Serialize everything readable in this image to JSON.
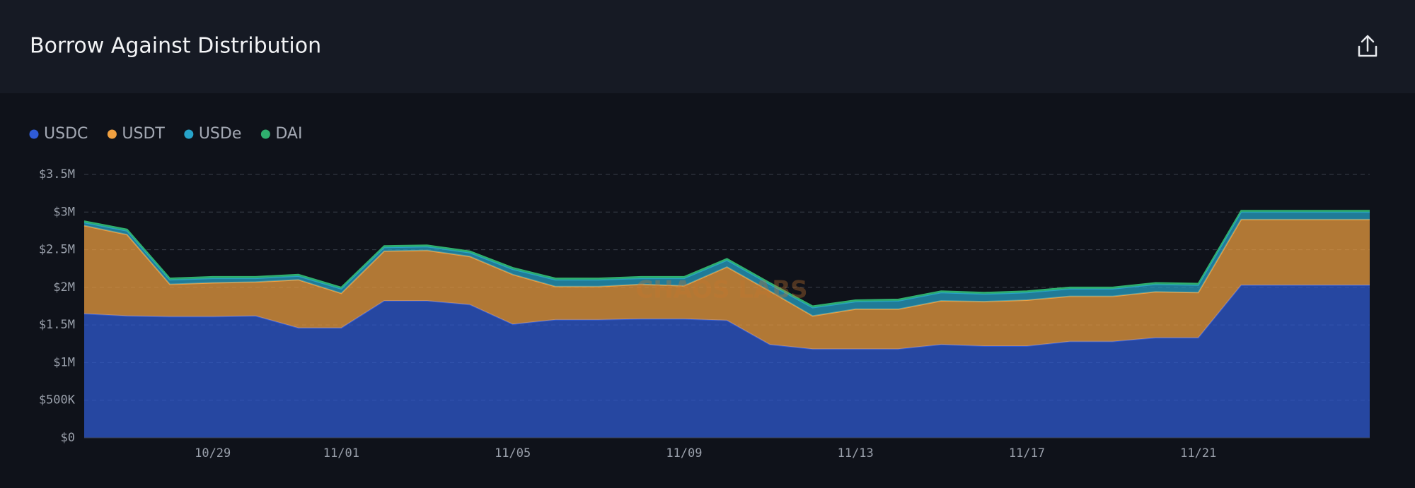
{
  "header": {
    "title": "Borrow Against Distribution"
  },
  "chart_data": {
    "type": "stacked-area",
    "watermark": "CHAOS LABS",
    "categories": [
      null,
      null,
      null,
      "10/29",
      null,
      null,
      "11/01",
      null,
      null,
      null,
      "11/05",
      null,
      null,
      null,
      "11/09",
      null,
      null,
      null,
      "11/13",
      null,
      null,
      null,
      "11/17",
      null,
      null,
      null,
      "11/21",
      null,
      null,
      null,
      null
    ],
    "series": [
      {
        "name": "USDC",
        "color": "#2f5bd6",
        "values": [
          1650000,
          1620000,
          1610000,
          1610000,
          1620000,
          1460000,
          1460000,
          1820000,
          1820000,
          1770000,
          1510000,
          1570000,
          1570000,
          1580000,
          1580000,
          1560000,
          1240000,
          1180000,
          1180000,
          1180000,
          1240000,
          1220000,
          1220000,
          1280000,
          1280000,
          1330000,
          1330000,
          2030000,
          2030000,
          2030000,
          2030000
        ]
      },
      {
        "name": "USDT",
        "color": "#f0a040",
        "values": [
          1170000,
          1080000,
          430000,
          450000,
          450000,
          640000,
          460000,
          660000,
          670000,
          640000,
          660000,
          440000,
          440000,
          460000,
          440000,
          710000,
          710000,
          440000,
          530000,
          530000,
          580000,
          590000,
          610000,
          600000,
          600000,
          610000,
          600000,
          870000,
          870000,
          870000,
          870000
        ]
      },
      {
        "name": "USDe",
        "color": "#27a3c9",
        "values": [
          40000,
          50000,
          60000,
          60000,
          50000,
          50000,
          60000,
          50000,
          50000,
          50000,
          70000,
          90000,
          90000,
          80000,
          100000,
          90000,
          90000,
          110000,
          100000,
          110000,
          110000,
          100000,
          100000,
          100000,
          100000,
          100000,
          100000,
          100000,
          100000,
          100000,
          100000
        ]
      },
      {
        "name": "DAI",
        "color": "#2fb06e",
        "values": [
          20000,
          20000,
          20000,
          20000,
          20000,
          20000,
          20000,
          20000,
          20000,
          20000,
          20000,
          20000,
          20000,
          20000,
          20000,
          20000,
          20000,
          20000,
          20000,
          20000,
          20000,
          20000,
          20000,
          20000,
          20000,
          20000,
          20000,
          20000,
          20000,
          20000,
          20000
        ]
      }
    ],
    "ylim": [
      0,
      3500000
    ],
    "yticks": [
      {
        "value": 0,
        "label": "$0"
      },
      {
        "value": 500000,
        "label": "$500K"
      },
      {
        "value": 1000000,
        "label": "$1M"
      },
      {
        "value": 1500000,
        "label": "$1.5M"
      },
      {
        "value": 2000000,
        "label": "$2M"
      },
      {
        "value": 2500000,
        "label": "$2.5M"
      },
      {
        "value": 3000000,
        "label": "$3M"
      },
      {
        "value": 3500000,
        "label": "$3.5M"
      }
    ],
    "grid": true,
    "legend": "top-left"
  }
}
